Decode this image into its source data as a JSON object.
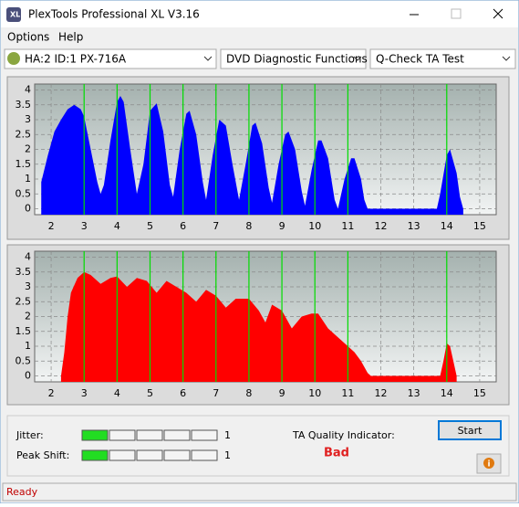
{
  "window": {
    "title": "PlexTools Professional XL V3.16"
  },
  "menu": [
    "Options",
    "Help"
  ],
  "toolbar": {
    "drive": "HA:2 ID:1  PX-716A",
    "function": "DVD Diagnostic Functions",
    "test": "Q-Check TA Test"
  },
  "chart_data": [
    {
      "type": "area",
      "color": "#0000ff",
      "marker_color": "#00dd00",
      "x": [
        1.7,
        1.9,
        2.1,
        2.3,
        2.5,
        2.7,
        2.9,
        3.0,
        3.2,
        3.4,
        3.5,
        3.6,
        3.8,
        4.0,
        4.1,
        4.2,
        4.4,
        4.6,
        4.8,
        5.0,
        5.2,
        5.4,
        5.6,
        5.7,
        5.9,
        6.1,
        6.2,
        6.4,
        6.6,
        6.7,
        6.9,
        7.1,
        7.3,
        7.5,
        7.7,
        7.9,
        8.1,
        8.2,
        8.4,
        8.6,
        8.7,
        8.9,
        9.1,
        9.2,
        9.4,
        9.6,
        9.7,
        9.9,
        10.1,
        10.2,
        10.4,
        10.6,
        10.7,
        10.9,
        11.1,
        11.2,
        11.4,
        11.5,
        11.6,
        13.7,
        13.8,
        14.0,
        14.1,
        14.3,
        14.4,
        14.5
      ],
      "values": [
        0.9,
        1.8,
        2.6,
        3.0,
        3.35,
        3.5,
        3.35,
        3.1,
        2.0,
        0.9,
        0.5,
        0.8,
        2.3,
        3.6,
        3.8,
        3.6,
        2.0,
        0.5,
        1.5,
        3.3,
        3.55,
        2.6,
        0.8,
        0.4,
        2.0,
        3.2,
        3.3,
        2.5,
        0.9,
        0.3,
        1.8,
        3.0,
        2.8,
        1.5,
        0.3,
        1.5,
        2.8,
        2.9,
        2.2,
        0.7,
        0.2,
        1.5,
        2.5,
        2.6,
        2.0,
        0.6,
        0.1,
        1.3,
        2.3,
        2.3,
        1.7,
        0.3,
        0,
        1.0,
        1.7,
        1.7,
        1.0,
        0.3,
        0,
        0,
        0.5,
        1.8,
        2.0,
        1.2,
        0.4,
        0
      ],
      "markers": [
        3,
        4,
        5,
        6,
        7,
        8,
        9,
        10,
        11,
        14
      ],
      "xlim": [
        1.5,
        15.5
      ],
      "ylim": [
        -0.2,
        4.2
      ],
      "xticks": [
        2,
        3,
        4,
        5,
        6,
        7,
        8,
        9,
        10,
        11,
        12,
        13,
        14,
        15
      ],
      "yticks": [
        0,
        0.5,
        1,
        1.5,
        2,
        2.5,
        3,
        3.5,
        4
      ],
      "grid": true
    },
    {
      "type": "area",
      "color": "#ff0000",
      "marker_color": "#00dd00",
      "x": [
        2.3,
        2.4,
        2.5,
        2.6,
        2.8,
        3.0,
        3.2,
        3.5,
        3.8,
        4.0,
        4.3,
        4.6,
        4.9,
        5.2,
        5.5,
        5.8,
        6.1,
        6.4,
        6.7,
        7.0,
        7.3,
        7.6,
        8.0,
        8.3,
        8.5,
        8.7,
        9.0,
        9.3,
        9.6,
        9.9,
        10.1,
        10.4,
        10.6,
        10.8,
        11.0,
        11.2,
        11.4,
        11.6,
        11.7,
        13.8,
        13.9,
        14.0,
        14.1,
        14.2,
        14.3
      ],
      "values": [
        0,
        0.8,
        2.0,
        2.8,
        3.3,
        3.5,
        3.4,
        3.1,
        3.3,
        3.35,
        3.0,
        3.3,
        3.2,
        2.8,
        3.2,
        3.0,
        2.8,
        2.5,
        2.9,
        2.7,
        2.3,
        2.6,
        2.6,
        2.2,
        1.8,
        2.4,
        2.2,
        1.6,
        2.0,
        2.1,
        2.1,
        1.6,
        1.4,
        1.2,
        1.0,
        0.8,
        0.5,
        0.1,
        0,
        0,
        0.5,
        1.1,
        1.0,
        0.5,
        0
      ],
      "markers": [
        3,
        4,
        5,
        6,
        7,
        8,
        9,
        10,
        11,
        14
      ],
      "xlim": [
        1.5,
        15.5
      ],
      "ylim": [
        -0.2,
        4.2
      ],
      "xticks": [
        2,
        3,
        4,
        5,
        6,
        7,
        8,
        9,
        10,
        11,
        12,
        13,
        14,
        15
      ],
      "yticks": [
        0,
        0.5,
        1,
        1.5,
        2,
        2.5,
        3,
        3.5,
        4
      ],
      "grid": true
    }
  ],
  "gauges": [
    {
      "label": "Jitter:",
      "value": 1
    },
    {
      "label": "Peak Shift:",
      "value": 1
    }
  ],
  "quality": {
    "label": "TA Quality Indicator:",
    "result": "Bad"
  },
  "buttons": {
    "start": "Start"
  },
  "status": "Ready"
}
